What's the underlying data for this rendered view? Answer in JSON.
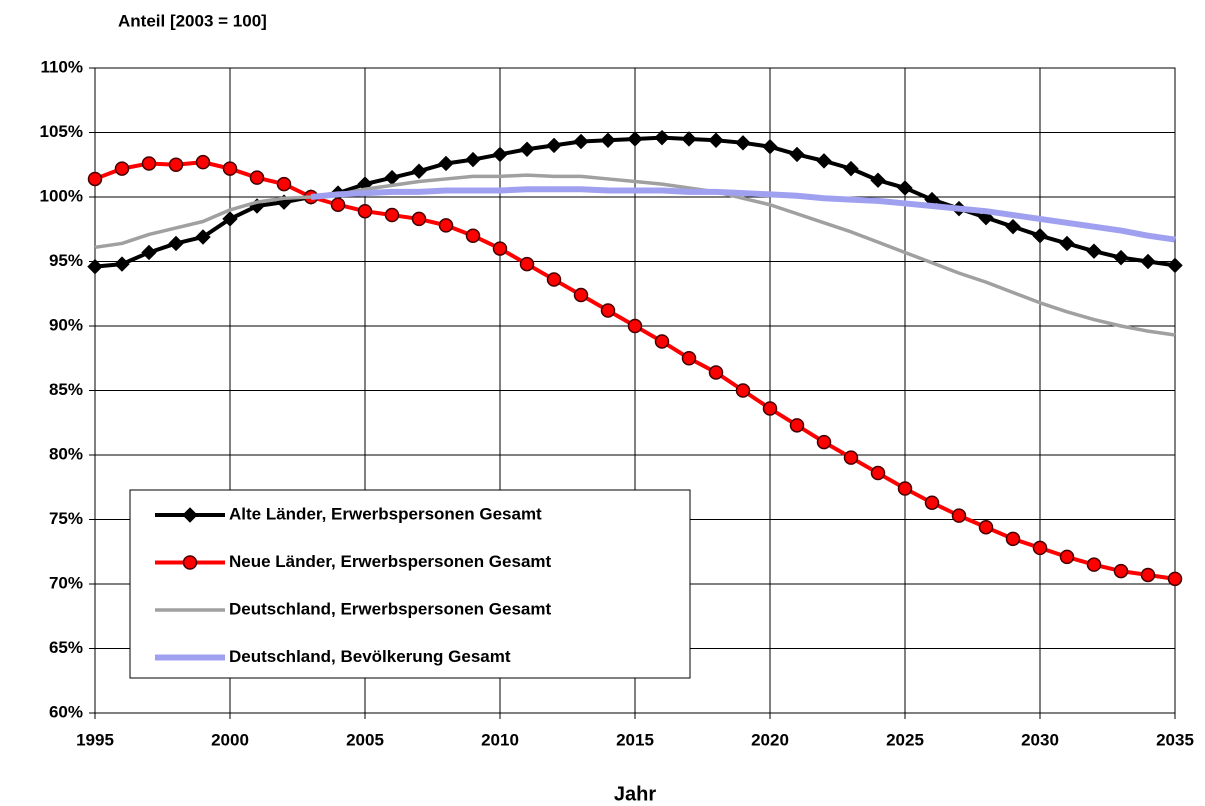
{
  "chart_data": {
    "type": "line",
    "title": "Anteil [2003 = 100]",
    "xlabel": "Jahr",
    "x": [
      1995,
      1996,
      1997,
      1998,
      1999,
      2000,
      2001,
      2002,
      2003,
      2004,
      2005,
      2006,
      2007,
      2008,
      2009,
      2010,
      2011,
      2012,
      2013,
      2014,
      2015,
      2016,
      2017,
      2018,
      2019,
      2020,
      2021,
      2022,
      2023,
      2024,
      2025,
      2026,
      2027,
      2028,
      2029,
      2030,
      2031,
      2032,
      2033,
      2034,
      2035
    ],
    "xlim": [
      1995,
      2035
    ],
    "xticks": [
      1995,
      2000,
      2005,
      2010,
      2015,
      2020,
      2025,
      2030,
      2035
    ],
    "ylim": [
      60,
      110
    ],
    "yticks": [
      {
        "value": 60,
        "label": "60%"
      },
      {
        "value": 65,
        "label": "65%"
      },
      {
        "value": 70,
        "label": "70%"
      },
      {
        "value": 75,
        "label": "75%"
      },
      {
        "value": 80,
        "label": "80%"
      },
      {
        "value": 85,
        "label": "85%"
      },
      {
        "value": 90,
        "label": "90%"
      },
      {
        "value": 95,
        "label": "95%"
      },
      {
        "value": 100,
        "label": "100%"
      },
      {
        "value": 105,
        "label": "105%"
      },
      {
        "value": 110,
        "label": "110%"
      }
    ],
    "grid": true,
    "legend": "lower left",
    "series": [
      {
        "name": "Alte Länder, Erwerbspersonen Gesamt",
        "color": "#000000",
        "marker": "diamond",
        "values": [
          94.6,
          94.8,
          95.7,
          96.4,
          96.9,
          98.3,
          99.3,
          99.6,
          100,
          100.3,
          101.0,
          101.5,
          102.0,
          102.6,
          102.9,
          103.3,
          103.7,
          104.0,
          104.3,
          104.4,
          104.5,
          104.6,
          104.5,
          104.4,
          104.2,
          103.9,
          103.3,
          102.8,
          102.2,
          101.3,
          100.7,
          99.8,
          99.1,
          98.4,
          97.7,
          97.0,
          96.4,
          95.8,
          95.3,
          95.0,
          94.7
        ]
      },
      {
        "name": "Neue Länder, Erwerbspersonen Gesamt",
        "color": "#ff0000",
        "marker": "circle",
        "values": [
          101.4,
          102.2,
          102.6,
          102.5,
          102.7,
          102.2,
          101.5,
          101.0,
          100,
          99.4,
          98.9,
          98.6,
          98.3,
          97.8,
          97.0,
          96.0,
          94.8,
          93.6,
          92.4,
          91.2,
          90.0,
          88.8,
          87.5,
          86.4,
          85.0,
          83.6,
          82.3,
          81.0,
          79.8,
          78.6,
          77.4,
          76.3,
          75.3,
          74.4,
          73.5,
          72.8,
          72.1,
          71.5,
          71.0,
          70.7,
          70.4
        ]
      },
      {
        "name": "Deutschland, Erwerbspersonen Gesamt",
        "color": "#a0a0a0",
        "values": [
          96.1,
          96.4,
          97.1,
          97.6,
          98.1,
          99.0,
          99.6,
          99.9,
          100,
          100.2,
          100.6,
          100.9,
          101.2,
          101.4,
          101.6,
          101.6,
          101.7,
          101.6,
          101.6,
          101.4,
          101.2,
          101.0,
          100.7,
          100.4,
          99.9,
          99.4,
          98.7,
          98.0,
          97.3,
          96.5,
          95.7,
          94.9,
          94.1,
          93.4,
          92.6,
          91.8,
          91.1,
          90.5,
          90.0,
          89.6,
          89.3
        ]
      },
      {
        "name": "Deutschland, Bevölkerung Gesamt",
        "color": "#a0a0f0",
        "values": [
          null,
          null,
          null,
          null,
          null,
          null,
          null,
          null,
          100.0,
          100.2,
          100.3,
          100.4,
          100.4,
          100.5,
          100.5,
          100.5,
          100.6,
          100.6,
          100.6,
          100.5,
          100.5,
          100.5,
          100.4,
          100.4,
          100.3,
          100.2,
          100.1,
          99.9,
          99.8,
          99.7,
          99.5,
          99.3,
          99.1,
          98.9,
          98.6,
          98.3,
          98.0,
          97.7,
          97.4,
          97.0,
          96.7
        ]
      }
    ]
  }
}
